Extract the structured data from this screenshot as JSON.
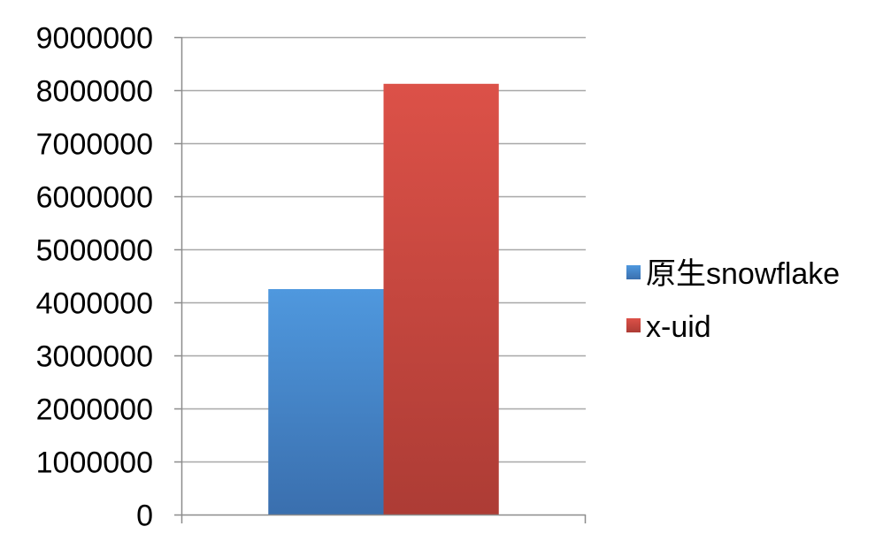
{
  "chart_data": {
    "type": "bar",
    "title": "",
    "xlabel": "",
    "ylabel": "",
    "categories": [
      ""
    ],
    "series": [
      {
        "name": "原生snowflake",
        "values": [
          4250000
        ],
        "color": "#4a8fd4"
      },
      {
        "name": "x-uid",
        "values": [
          8120000
        ],
        "color": "#d5473f"
      }
    ],
    "ylim": [
      0,
      9000000
    ],
    "yticks": [
      0,
      1000000,
      2000000,
      3000000,
      4000000,
      5000000,
      6000000,
      7000000,
      8000000,
      9000000
    ],
    "grid": true,
    "legend": "right"
  }
}
